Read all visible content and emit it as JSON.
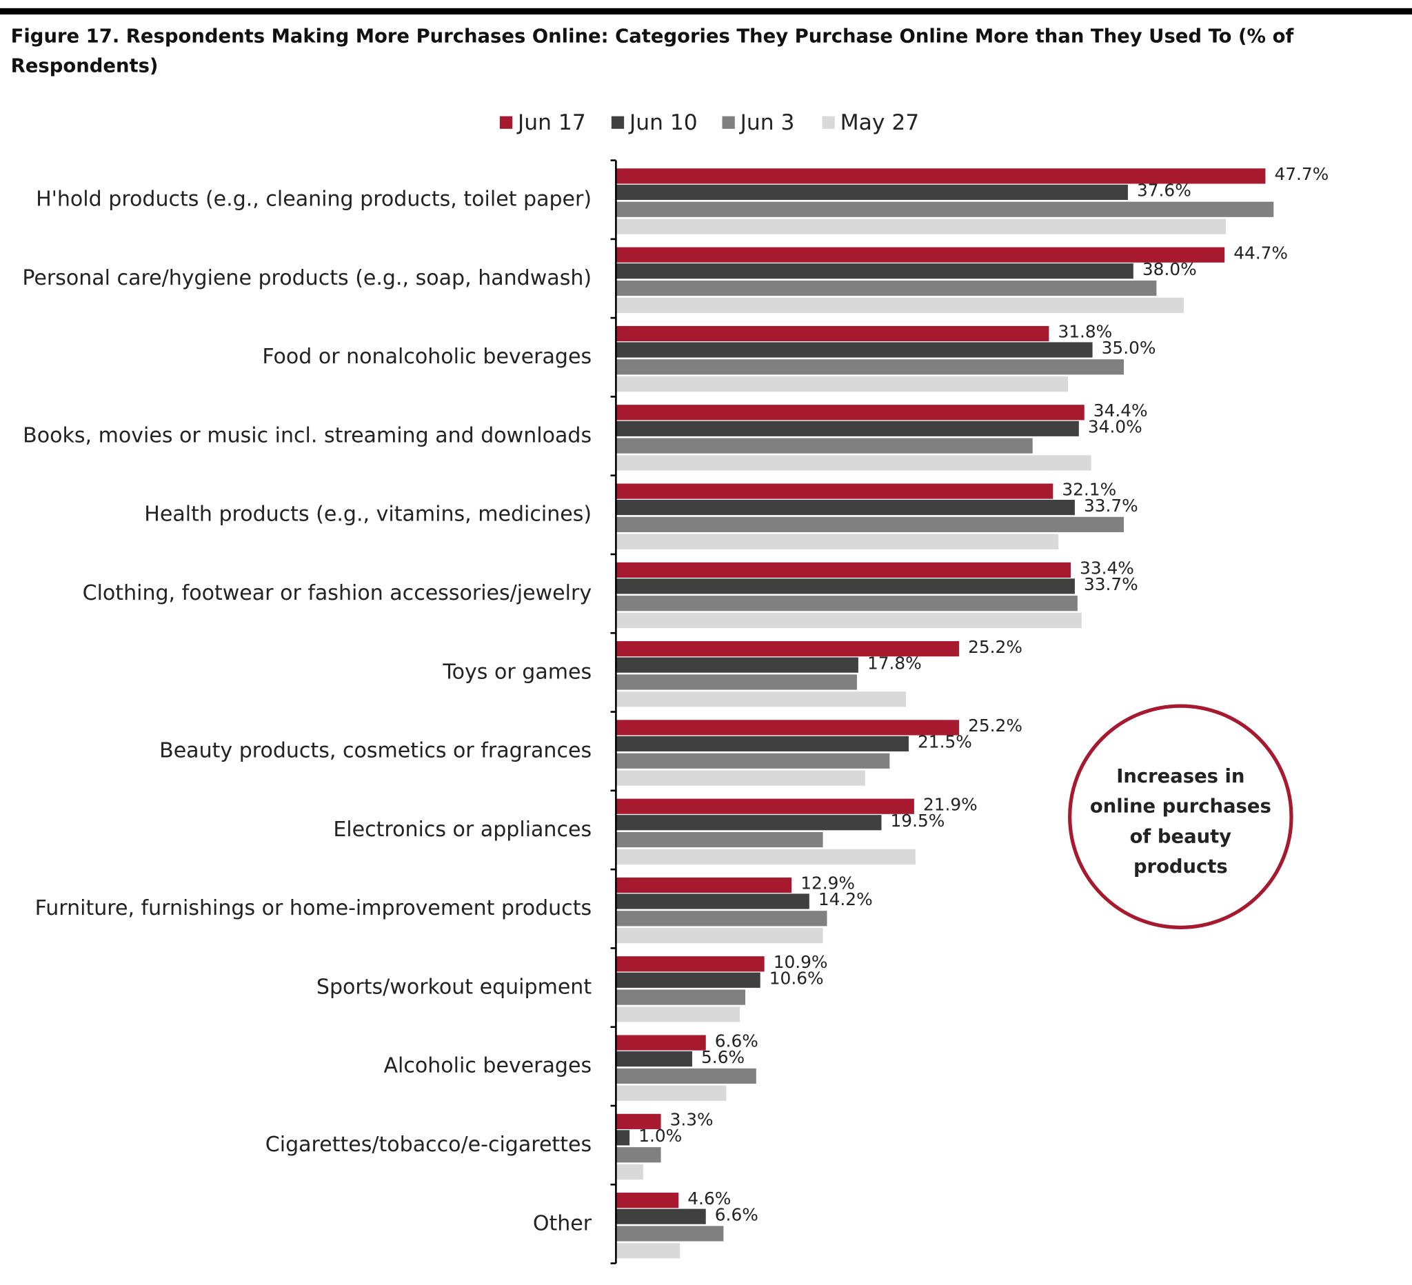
{
  "chart_data": {
    "type": "hbar",
    "title": "Figure 17. Respondents Making More Purchases Online: Categories They Purchase Online More than They Used To (% of Respondents)",
    "categories": [
      "H'hold products (e.g., cleaning products, toilet paper)",
      "Personal care/hygiene products (e.g., soap, handwash)",
      "Food or nonalcoholic beverages",
      "Books, movies or music incl. streaming and downloads",
      "Health products (e.g., vitamins, medicines)",
      "Clothing, footwear or fashion accessories/jewelry",
      "Toys or games",
      "Beauty products, cosmetics or fragrances",
      "Electronics or appliances",
      "Furniture, furnishings or home-improvement products",
      "Sports/workout equipment",
      "Alcoholic beverages",
      "Cigarettes/tobacco/e-cigarettes",
      "Other"
    ],
    "series": [
      {
        "name": "Jun 17",
        "color": "#a6192e",
        "values": [
          47.7,
          44.7,
          31.8,
          34.4,
          32.1,
          33.4,
          25.2,
          25.2,
          21.9,
          12.9,
          10.9,
          6.6,
          3.3,
          4.6
        ],
        "value_labels": [
          "47.7%",
          "44.7%",
          "31.8%",
          "34.4%",
          "32.1%",
          "33.4%",
          "25.2%",
          "25.2%",
          "21.9%",
          "12.9%",
          "10.9%",
          "6.6%",
          "3.3%",
          "4.6%"
        ]
      },
      {
        "name": "Jun 10",
        "color": "#404040",
        "values": [
          37.6,
          38.0,
          35.0,
          34.0,
          33.7,
          33.7,
          17.8,
          21.5,
          19.5,
          14.2,
          10.6,
          5.6,
          1.0,
          6.6
        ],
        "value_labels": [
          "37.6%",
          "38.0%",
          "35.0%",
          "34.0%",
          "33.7%",
          "33.7%",
          "17.8%",
          "21.5%",
          "19.5%",
          "14.2%",
          "10.6%",
          "5.6%",
          "1.0%",
          "6.6%"
        ]
      },
      {
        "name": "Jun 3",
        "color": "#808080",
        "values": [
          48.3,
          39.7,
          37.3,
          30.6,
          37.3,
          33.9,
          17.7,
          20.1,
          15.2,
          15.5,
          9.5,
          10.3,
          3.3,
          7.9
        ]
      },
      {
        "name": "May 27",
        "color": "#d9d9d9",
        "values": [
          44.8,
          41.7,
          33.2,
          34.9,
          32.5,
          34.2,
          21.3,
          18.3,
          22.0,
          15.2,
          9.1,
          8.1,
          2.0,
          4.7
        ]
      }
    ],
    "xlim": [
      0,
      50
    ],
    "legend": "top",
    "annotation": [
      "Increases in",
      "online purchases",
      "of beauty",
      "products"
    ],
    "annotation_color": "#a6192e"
  }
}
